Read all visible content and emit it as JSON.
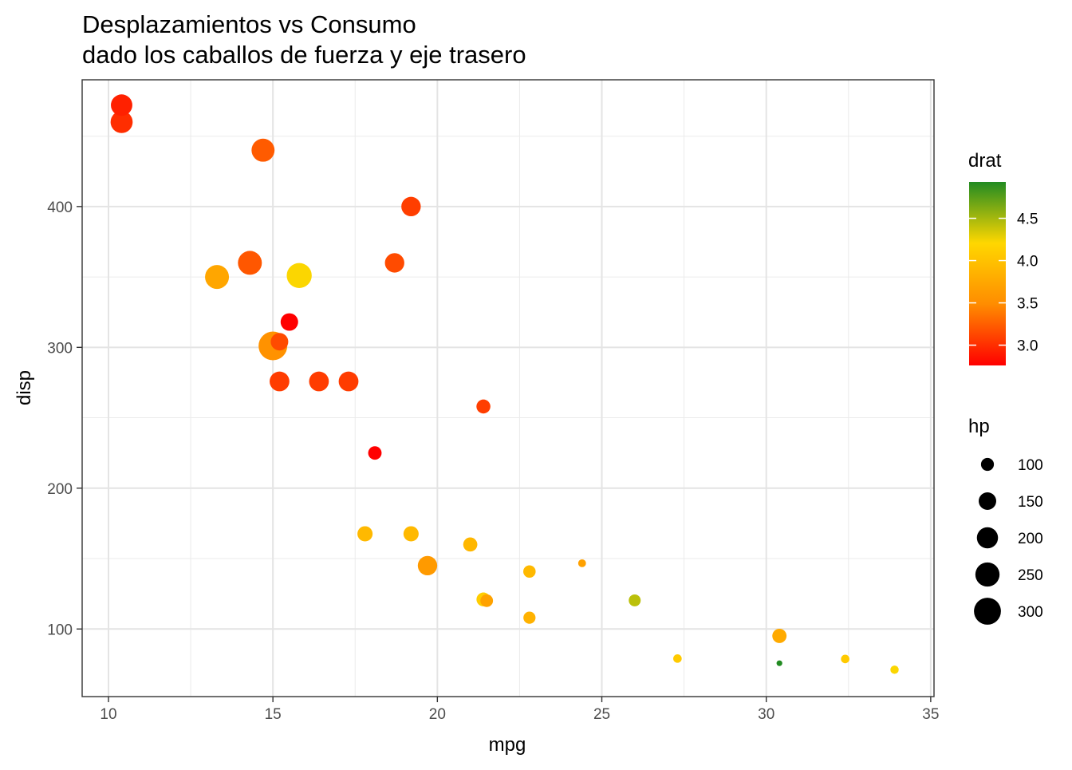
{
  "chart_data": {
    "type": "scatter",
    "title": [
      "Desplazamientos vs Consumo",
      "dado los caballos de fuerza y eje trasero"
    ],
    "xlabel": "mpg",
    "ylabel": "disp",
    "xlim": [
      9.2,
      35.1
    ],
    "ylim": [
      52,
      490
    ],
    "x_ticks": [
      10,
      15,
      20,
      25,
      30,
      35
    ],
    "y_ticks": [
      100,
      200,
      300,
      400
    ],
    "grid": true,
    "color_legend": {
      "title": "drat",
      "range": [
        2.76,
        4.93
      ],
      "ticks": [
        3.0,
        3.5,
        4.0,
        4.5
      ],
      "tick_labels": [
        "3.0",
        "3.5",
        "4.0",
        "4.5"
      ],
      "colors": [
        "#ff0000",
        "#ff8c00",
        "#ffd700",
        "#228b22"
      ]
    },
    "size_legend": {
      "title": "hp",
      "range": [
        52,
        335
      ],
      "values": [
        100,
        150,
        200,
        250,
        300
      ],
      "labels": [
        "100",
        "150",
        "200",
        "250",
        "300"
      ]
    },
    "points": [
      {
        "mpg": 21.0,
        "disp": 160.0,
        "hp": 110,
        "drat": 3.9
      },
      {
        "mpg": 21.0,
        "disp": 160.0,
        "hp": 110,
        "drat": 3.9
      },
      {
        "mpg": 22.8,
        "disp": 108.0,
        "hp": 93,
        "drat": 3.85
      },
      {
        "mpg": 21.4,
        "disp": 258.0,
        "hp": 110,
        "drat": 3.08
      },
      {
        "mpg": 18.7,
        "disp": 360.0,
        "hp": 175,
        "drat": 3.15
      },
      {
        "mpg": 18.1,
        "disp": 225.0,
        "hp": 105,
        "drat": 2.76
      },
      {
        "mpg": 14.3,
        "disp": 360.0,
        "hp": 245,
        "drat": 3.21
      },
      {
        "mpg": 24.4,
        "disp": 146.7,
        "hp": 62,
        "drat": 3.69
      },
      {
        "mpg": 22.8,
        "disp": 140.8,
        "hp": 95,
        "drat": 3.92
      },
      {
        "mpg": 19.2,
        "disp": 167.6,
        "hp": 123,
        "drat": 3.92
      },
      {
        "mpg": 17.8,
        "disp": 167.6,
        "hp": 123,
        "drat": 3.92
      },
      {
        "mpg": 16.4,
        "disp": 275.8,
        "hp": 180,
        "drat": 3.07
      },
      {
        "mpg": 17.3,
        "disp": 275.8,
        "hp": 180,
        "drat": 3.07
      },
      {
        "mpg": 15.2,
        "disp": 275.8,
        "hp": 180,
        "drat": 3.07
      },
      {
        "mpg": 10.4,
        "disp": 472.0,
        "hp": 205,
        "drat": 2.93
      },
      {
        "mpg": 10.4,
        "disp": 460.0,
        "hp": 215,
        "drat": 3.0
      },
      {
        "mpg": 14.7,
        "disp": 440.0,
        "hp": 230,
        "drat": 3.23
      },
      {
        "mpg": 32.4,
        "disp": 78.7,
        "hp": 66,
        "drat": 4.08
      },
      {
        "mpg": 30.4,
        "disp": 75.7,
        "hp": 52,
        "drat": 4.93
      },
      {
        "mpg": 33.9,
        "disp": 71.1,
        "hp": 65,
        "drat": 4.22
      },
      {
        "mpg": 21.5,
        "disp": 120.1,
        "hp": 97,
        "drat": 3.7
      },
      {
        "mpg": 15.5,
        "disp": 318.0,
        "hp": 150,
        "drat": 2.76
      },
      {
        "mpg": 15.2,
        "disp": 304.0,
        "hp": 150,
        "drat": 3.15
      },
      {
        "mpg": 13.3,
        "disp": 350.0,
        "hp": 245,
        "drat": 3.73
      },
      {
        "mpg": 19.2,
        "disp": 400.0,
        "hp": 175,
        "drat": 3.08
      },
      {
        "mpg": 27.3,
        "disp": 79.0,
        "hp": 66,
        "drat": 4.08
      },
      {
        "mpg": 26.0,
        "disp": 120.3,
        "hp": 91,
        "drat": 4.43
      },
      {
        "mpg": 30.4,
        "disp": 95.1,
        "hp": 113,
        "drat": 3.77
      },
      {
        "mpg": 15.8,
        "disp": 351.0,
        "hp": 264,
        "drat": 4.22
      },
      {
        "mpg": 19.7,
        "disp": 145.0,
        "hp": 175,
        "drat": 3.62
      },
      {
        "mpg": 15.0,
        "disp": 301.0,
        "hp": 335,
        "drat": 3.54
      },
      {
        "mpg": 21.4,
        "disp": 121.0,
        "hp": 109,
        "drat": 4.11
      }
    ]
  }
}
